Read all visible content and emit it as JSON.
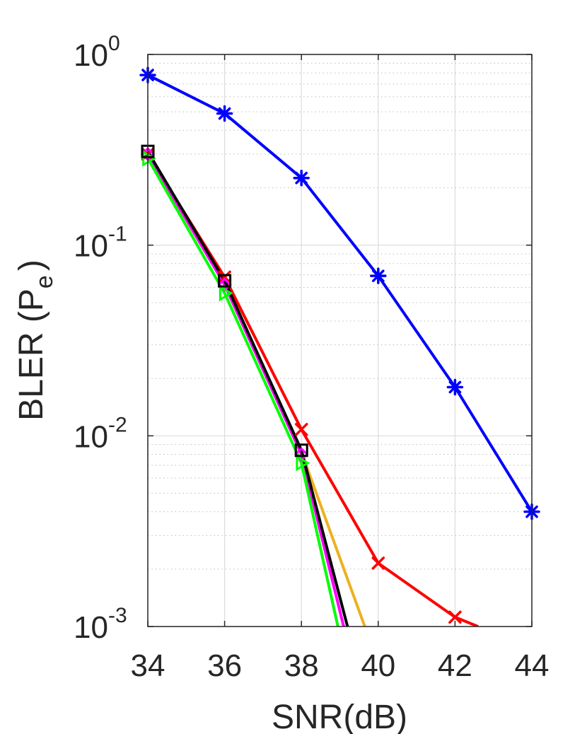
{
  "chart_data": {
    "type": "line",
    "xlabel": "SNR(dB)",
    "ylabel": {
      "prefix": "BLER (P",
      "subscript": "e",
      "suffix": ")"
    },
    "xlim": [
      34,
      44
    ],
    "ylim": [
      0.001,
      1
    ],
    "yscale": "log",
    "grid": true,
    "minor_grid": true,
    "x_ticks": [
      34,
      36,
      38,
      40,
      42,
      44
    ],
    "y_ticks": [
      {
        "value": 0.001,
        "base": "10",
        "exp": "-3"
      },
      {
        "value": 0.01,
        "base": "10",
        "exp": "-2"
      },
      {
        "value": 0.1,
        "base": "10",
        "exp": "-1"
      },
      {
        "value": 1,
        "base": "10",
        "exp": "0"
      }
    ],
    "series": [
      {
        "color": "#0000ff",
        "marker": "asterisk",
        "x": [
          34,
          36,
          38,
          40,
          42,
          44
        ],
        "y": [
          0.78,
          0.49,
          0.225,
          0.069,
          0.018,
          0.004
        ]
      },
      {
        "color": "#ff0000",
        "marker": "x",
        "x": [
          34,
          36,
          38,
          40,
          42,
          42.6
        ],
        "y": [
          0.3,
          0.068,
          0.0108,
          0.00215,
          0.00112,
          0.001
        ]
      },
      {
        "color": "#edb120",
        "marker": "none",
        "x": [
          34,
          36,
          38,
          39.65
        ],
        "y": [
          0.3,
          0.062,
          0.0082,
          0.001
        ]
      },
      {
        "color": "#ff00ff",
        "marker": "diamond",
        "x": [
          34,
          36,
          38,
          39.1
        ],
        "y": [
          0.3,
          0.062,
          0.008,
          0.001
        ]
      },
      {
        "color": "#00ff00",
        "marker": "triangle-right",
        "x": [
          34,
          36,
          38,
          38.95
        ],
        "y": [
          0.285,
          0.056,
          0.0072,
          0.001
        ]
      },
      {
        "color": "#000000",
        "marker": "square",
        "x": [
          34,
          36,
          38,
          39.2
        ],
        "y": [
          0.31,
          0.065,
          0.0084,
          0.001
        ]
      }
    ]
  }
}
